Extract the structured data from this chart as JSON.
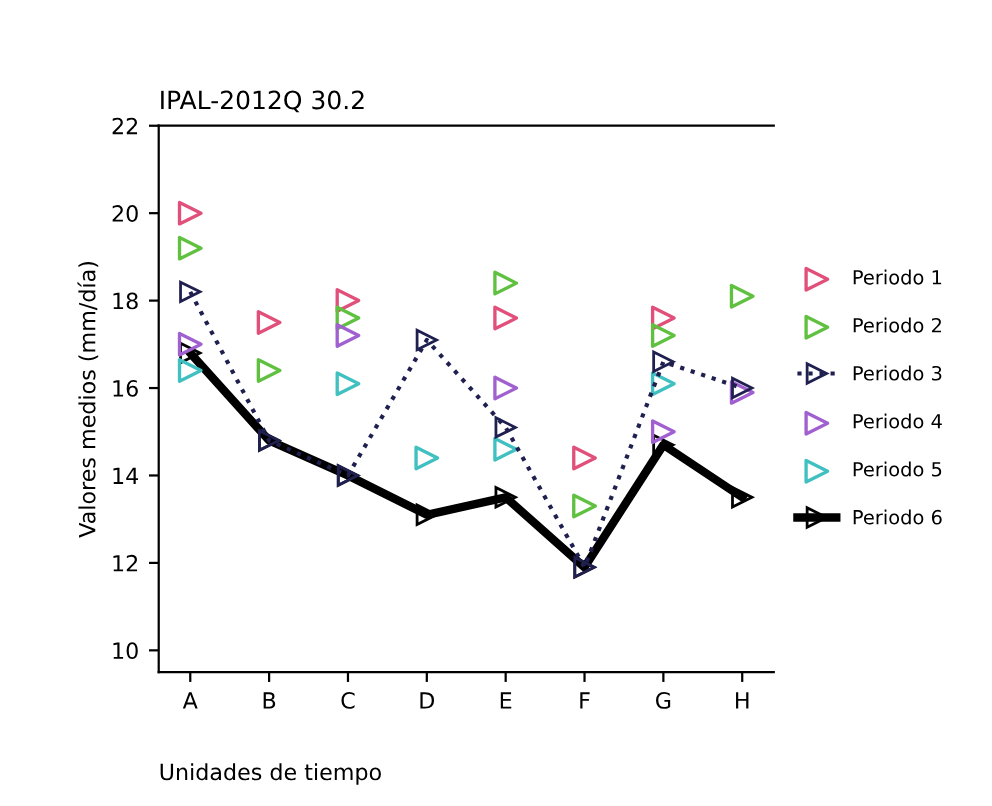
{
  "chart_data": {
    "type": "line",
    "title": "IPAL-2012Q 30.2",
    "xlabel": "Unidades de tiempo",
    "ylabel": "Valores medios (mm/día)",
    "categories": [
      "A",
      "B",
      "C",
      "D",
      "E",
      "F",
      "G",
      "H"
    ],
    "ylim": [
      9.5,
      22
    ],
    "yticks": [
      10,
      12,
      14,
      16,
      18,
      20,
      22
    ],
    "grid": false,
    "legend": "right",
    "marker": "triangle",
    "series": [
      {
        "name": "Periodo 1",
        "type": "scatter",
        "color": "#e0507a",
        "values": [
          20.0,
          17.5,
          18.0,
          null,
          17.6,
          14.4,
          17.6,
          null
        ]
      },
      {
        "name": "Periodo 2",
        "type": "scatter",
        "color": "#60c040",
        "values": [
          19.2,
          16.4,
          17.6,
          null,
          18.4,
          13.3,
          17.2,
          18.1
        ]
      },
      {
        "name": "Periodo 3",
        "line_style": "dotted",
        "color": "#202050",
        "values": [
          18.2,
          14.8,
          14.0,
          17.1,
          15.1,
          11.9,
          16.6,
          16.0
        ]
      },
      {
        "name": "Periodo 4",
        "type": "scatter",
        "color": "#a060d0",
        "values": [
          17.0,
          null,
          17.2,
          null,
          16.0,
          null,
          15.0,
          15.9
        ]
      },
      {
        "name": "Periodo 5",
        "type": "scatter",
        "color": "#40c0c0",
        "values": [
          16.4,
          null,
          16.1,
          14.4,
          14.6,
          null,
          16.1,
          null
        ]
      },
      {
        "name": "Periodo 6",
        "line_style": "solid",
        "color": "#000000",
        "values": [
          16.8,
          14.8,
          14.0,
          13.1,
          13.5,
          11.9,
          14.7,
          13.5
        ]
      }
    ]
  }
}
